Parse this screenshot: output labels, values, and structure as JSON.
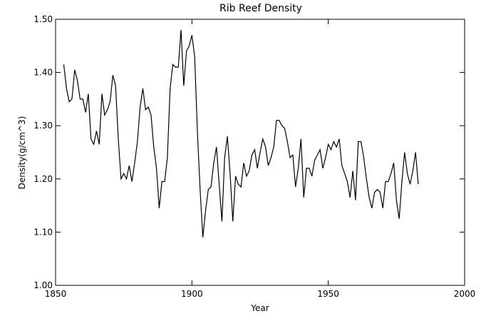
{
  "chart_data": {
    "type": "line",
    "title": "Rib Reef Density",
    "xlabel": "Year",
    "ylabel": "Density(g/cm^3)",
    "xlim": [
      1850,
      2000
    ],
    "ylim": [
      1.0,
      1.5
    ],
    "xticks": [
      1850,
      1900,
      1950,
      2000
    ],
    "yticks": [
      1.0,
      1.1,
      1.2,
      1.3,
      1.4,
      1.5
    ],
    "xtick_labels": [
      "1850",
      "1900",
      "1950",
      "2000"
    ],
    "ytick_labels": [
      "1.00",
      "1.10",
      "1.20",
      "1.30",
      "1.40",
      "1.50"
    ],
    "grid": false,
    "series": [
      {
        "x": [
          1853,
          1854,
          1855,
          1856,
          1857,
          1858,
          1859,
          1860,
          1861,
          1862,
          1863,
          1864,
          1865,
          1866,
          1867,
          1868,
          1869,
          1870,
          1871,
          1872,
          1873,
          1874,
          1875,
          1876,
          1877,
          1878,
          1879,
          1880,
          1881,
          1882,
          1883,
          1884,
          1885,
          1886,
          1887,
          1888,
          1889,
          1890,
          1891,
          1892,
          1893,
          1894,
          1895,
          1896,
          1897,
          1898,
          1899,
          1900,
          1901,
          1902,
          1903,
          1904,
          1905,
          1906,
          1907,
          1908,
          1909,
          1910,
          1911,
          1912,
          1913,
          1914,
          1915,
          1916,
          1917,
          1918,
          1919,
          1920,
          1921,
          1922,
          1923,
          1924,
          1925,
          1926,
          1927,
          1928,
          1929,
          1930,
          1931,
          1932,
          1933,
          1934,
          1935,
          1936,
          1937,
          1938,
          1939,
          1940,
          1941,
          1942,
          1943,
          1944,
          1945,
          1946,
          1947,
          1948,
          1949,
          1950,
          1951,
          1952,
          1953,
          1954,
          1955,
          1956,
          1957,
          1958,
          1959,
          1960,
          1961,
          1962,
          1963,
          1964,
          1965,
          1966,
          1967,
          1968,
          1969,
          1970,
          1971,
          1972,
          1973,
          1974,
          1975,
          1976,
          1977,
          1978,
          1979,
          1980,
          1981,
          1982,
          1983
        ],
        "y": [
          1.415,
          1.37,
          1.345,
          1.35,
          1.405,
          1.385,
          1.35,
          1.35,
          1.325,
          1.36,
          1.275,
          1.265,
          1.29,
          1.265,
          1.36,
          1.32,
          1.33,
          1.345,
          1.395,
          1.375,
          1.275,
          1.2,
          1.21,
          1.2,
          1.225,
          1.195,
          1.23,
          1.27,
          1.335,
          1.37,
          1.33,
          1.335,
          1.32,
          1.26,
          1.22,
          1.145,
          1.195,
          1.195,
          1.24,
          1.37,
          1.415,
          1.41,
          1.41,
          1.48,
          1.375,
          1.44,
          1.45,
          1.47,
          1.43,
          1.29,
          1.18,
          1.09,
          1.14,
          1.18,
          1.185,
          1.23,
          1.26,
          1.19,
          1.12,
          1.24,
          1.28,
          1.21,
          1.12,
          1.205,
          1.19,
          1.185,
          1.23,
          1.205,
          1.215,
          1.245,
          1.255,
          1.22,
          1.25,
          1.275,
          1.26,
          1.225,
          1.24,
          1.26,
          1.31,
          1.31,
          1.3,
          1.295,
          1.27,
          1.24,
          1.245,
          1.185,
          1.22,
          1.275,
          1.165,
          1.22,
          1.22,
          1.205,
          1.235,
          1.245,
          1.255,
          1.22,
          1.24,
          1.265,
          1.255,
          1.27,
          1.26,
          1.275,
          1.225,
          1.21,
          1.195,
          1.165,
          1.215,
          1.16,
          1.27,
          1.27,
          1.24,
          1.2,
          1.165,
          1.145,
          1.175,
          1.18,
          1.175,
          1.145,
          1.195,
          1.195,
          1.21,
          1.23,
          1.16,
          1.125,
          1.195,
          1.25,
          1.21,
          1.19,
          1.215,
          1.25,
          1.19
        ]
      }
    ]
  }
}
